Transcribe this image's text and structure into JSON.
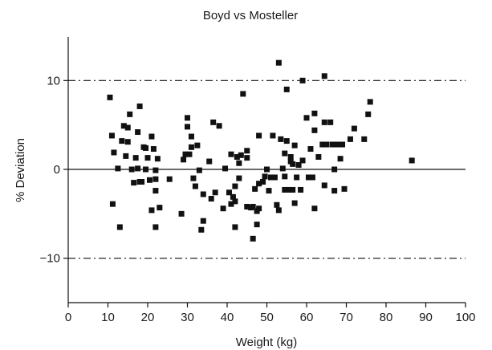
{
  "chart_data": {
    "type": "scatter",
    "title": "Boyd vs Mosteller",
    "xlabel": "Weight (kg)",
    "ylabel": "% Deviation",
    "xlim": [
      0,
      100
    ],
    "ylim": [
      -15,
      15
    ],
    "x_ticks": [
      0,
      10,
      20,
      30,
      40,
      50,
      60,
      70,
      80,
      90,
      100
    ],
    "y_ticks": [
      -10,
      0,
      10
    ],
    "y_tick_labels": [
      "−10",
      "0",
      "10"
    ],
    "reference_lines": [
      {
        "y": 10,
        "style": "dash-dot"
      },
      {
        "y": 0,
        "style": "solid"
      },
      {
        "y": -10,
        "style": "dash-dot"
      }
    ],
    "grid": false,
    "marker": "square",
    "marker_color": "#111111",
    "series": [
      {
        "points": [
          [
            10.5,
            8.1
          ],
          [
            11,
            3.8
          ],
          [
            11.2,
            -3.9
          ],
          [
            11.5,
            1.9
          ],
          [
            12.5,
            0.1
          ],
          [
            13,
            -6.5
          ],
          [
            13.5,
            3.2
          ],
          [
            14,
            4.9
          ],
          [
            14.5,
            1.5
          ],
          [
            15,
            4.7
          ],
          [
            15,
            3.1
          ],
          [
            15.5,
            6.2
          ],
          [
            16,
            0.0
          ],
          [
            16.5,
            -1.5
          ],
          [
            17,
            1.3
          ],
          [
            17.5,
            4.2
          ],
          [
            17.5,
            0.1
          ],
          [
            18,
            7.1
          ],
          [
            18,
            -1.4
          ],
          [
            18.5,
            -1.4
          ],
          [
            19,
            2.5
          ],
          [
            19.5,
            2.4
          ],
          [
            19.5,
            0.0
          ],
          [
            20,
            1.3
          ],
          [
            20.5,
            -1.2
          ],
          [
            21,
            -4.6
          ],
          [
            21,
            3.7
          ],
          [
            21.5,
            2.3
          ],
          [
            22,
            -1.1
          ],
          [
            22,
            -2.4
          ],
          [
            22,
            -6.5
          ],
          [
            22,
            -0.1
          ],
          [
            22.5,
            1.2
          ],
          [
            23,
            -4.3
          ],
          [
            25.5,
            -1.1
          ],
          [
            28.5,
            -5.0
          ],
          [
            29,
            1.1
          ],
          [
            29.5,
            1.7
          ],
          [
            30,
            5.8
          ],
          [
            30,
            4.8
          ],
          [
            30.5,
            1.7
          ],
          [
            31,
            3.7
          ],
          [
            31,
            2.5
          ],
          [
            31.5,
            -1.0
          ],
          [
            32,
            -1.9
          ],
          [
            32.5,
            2.7
          ],
          [
            33,
            -0.1
          ],
          [
            33.5,
            -6.8
          ],
          [
            34,
            -2.8
          ],
          [
            34,
            -5.8
          ],
          [
            35.5,
            0.9
          ],
          [
            36,
            -3.3
          ],
          [
            36.5,
            5.3
          ],
          [
            37,
            -2.6
          ],
          [
            38,
            4.9
          ],
          [
            39,
            -4.4
          ],
          [
            39.5,
            0.1
          ],
          [
            40.5,
            -2.6
          ],
          [
            41,
            1.7
          ],
          [
            41,
            -3.9
          ],
          [
            41.5,
            -3.1
          ],
          [
            42,
            -1.9
          ],
          [
            42,
            -3.6
          ],
          [
            42,
            -6.5
          ],
          [
            42.5,
            1.4
          ],
          [
            43,
            0.7
          ],
          [
            43,
            -1.0
          ],
          [
            43.5,
            1.6
          ],
          [
            44,
            8.5
          ],
          [
            45,
            2.1
          ],
          [
            45,
            1.3
          ],
          [
            45,
            -4.2
          ],
          [
            46,
            -4.3
          ],
          [
            46.5,
            -7.8
          ],
          [
            46.5,
            -4.2
          ],
          [
            47,
            -2.2
          ],
          [
            47.5,
            -4.7
          ],
          [
            47.5,
            -6.2
          ],
          [
            48,
            -4.4
          ],
          [
            48,
            3.8
          ],
          [
            48,
            -1.6
          ],
          [
            49,
            -1.4
          ],
          [
            49.5,
            -0.8
          ],
          [
            50,
            0.0
          ],
          [
            50.5,
            -2.4
          ],
          [
            51,
            -0.9
          ],
          [
            51.5,
            3.8
          ],
          [
            52,
            -0.9
          ],
          [
            52.5,
            -4.0
          ],
          [
            53,
            -4.6
          ],
          [
            53,
            12.0
          ],
          [
            53.5,
            3.4
          ],
          [
            54,
            0.1
          ],
          [
            54.5,
            1.8
          ],
          [
            54.5,
            -0.8
          ],
          [
            54.5,
            -2.3
          ],
          [
            55,
            9.0
          ],
          [
            55,
            3.2
          ],
          [
            55.5,
            -2.3
          ],
          [
            56,
            1.4
          ],
          [
            56,
            0.9
          ],
          [
            56.5,
            -2.3
          ],
          [
            56.5,
            0.6
          ],
          [
            57,
            2.7
          ],
          [
            57,
            -3.8
          ],
          [
            57.5,
            -0.9
          ],
          [
            58,
            0.5
          ],
          [
            58.5,
            -2.3
          ],
          [
            59,
            10.0
          ],
          [
            59,
            1.0
          ],
          [
            60,
            5.8
          ],
          [
            60.5,
            -0.9
          ],
          [
            61,
            2.3
          ],
          [
            61.5,
            -0.9
          ],
          [
            62,
            6.3
          ],
          [
            62,
            4.4
          ],
          [
            62,
            -4.4
          ],
          [
            63,
            1.4
          ],
          [
            64,
            2.8
          ],
          [
            64.5,
            10.5
          ],
          [
            64.5,
            5.3
          ],
          [
            64.5,
            -1.8
          ],
          [
            65,
            2.8
          ],
          [
            66,
            5.3
          ],
          [
            66.5,
            2.8
          ],
          [
            67,
            0.0
          ],
          [
            67,
            -2.4
          ],
          [
            67.5,
            2.8
          ],
          [
            68,
            2.8
          ],
          [
            68.5,
            1.2
          ],
          [
            69,
            2.8
          ],
          [
            69.5,
            -2.2
          ],
          [
            71,
            3.4
          ],
          [
            72,
            4.6
          ],
          [
            74.5,
            3.4
          ],
          [
            75.5,
            6.2
          ],
          [
            76,
            7.6
          ],
          [
            86.5,
            1.0
          ]
        ]
      }
    ]
  }
}
